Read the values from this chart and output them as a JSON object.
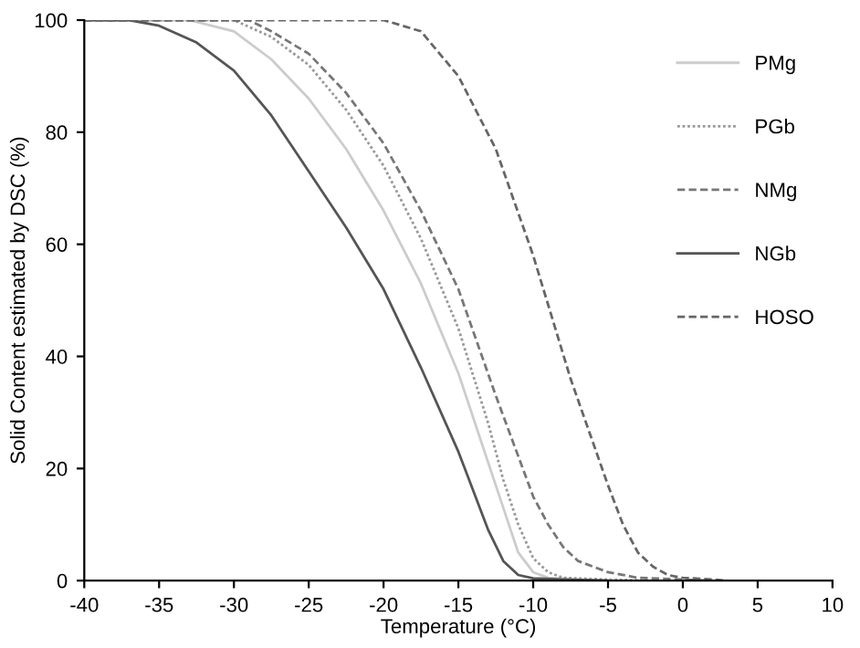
{
  "chart_data": {
    "type": "line",
    "xlabel": "Temperature (°C)",
    "ylabel": "Solid Content estimated by DSC (%)",
    "xlim": [
      -40,
      10
    ],
    "ylim": [
      0,
      100
    ],
    "xticks": [
      -40,
      -35,
      -30,
      -25,
      -20,
      -15,
      -10,
      -5,
      0,
      5,
      10
    ],
    "yticks": [
      0,
      20,
      40,
      60,
      80,
      100
    ],
    "grid": false,
    "legend": "top right",
    "marker": "none",
    "series": [
      {
        "name": "PMg",
        "color": "#cccccc",
        "line_style": "solid",
        "x": [
          -40,
          -33,
          -30,
          -27.5,
          -25,
          -22.5,
          -20,
          -17.5,
          -15,
          -13,
          -12,
          -11,
          -10,
          -9,
          -7,
          -5
        ],
        "values": [
          100,
          100,
          98,
          93,
          86,
          77,
          66,
          53,
          37,
          21,
          13,
          5,
          1.5,
          0.5,
          0.2,
          0
        ]
      },
      {
        "name": "PGb",
        "color": "#999999",
        "line_style": "dotted",
        "x": [
          -40,
          -30,
          -27.5,
          -25,
          -22.5,
          -20,
          -17.5,
          -15,
          -13,
          -12,
          -11,
          -10,
          -9,
          -8,
          -5,
          -2
        ],
        "values": [
          100,
          100,
          97,
          92,
          84,
          74,
          61,
          45,
          28,
          18,
          10,
          4,
          1.5,
          0.5,
          0.2,
          0
        ]
      },
      {
        "name": "NMg",
        "color": "#777777",
        "line_style": "dashed",
        "x": [
          -40,
          -29,
          -27.5,
          -25,
          -22.5,
          -20,
          -17.5,
          -15,
          -12.5,
          -10,
          -9,
          -8,
          -7,
          -5,
          -3,
          0,
          2
        ],
        "values": [
          100,
          100,
          98,
          94,
          87,
          78,
          66,
          52,
          33,
          15,
          10,
          6,
          3.5,
          1.5,
          0.5,
          0.2,
          0
        ]
      },
      {
        "name": "NGb",
        "color": "#555555",
        "line_style": "solid",
        "x": [
          -40,
          -37,
          -35,
          -32.5,
          -30,
          -27.5,
          -25,
          -22.5,
          -20,
          -17.5,
          -15,
          -13,
          -12,
          -11,
          -10,
          -8,
          -5
        ],
        "values": [
          100,
          100,
          99,
          96,
          91,
          83,
          73,
          63,
          52,
          38,
          23,
          9,
          3.5,
          1,
          0.4,
          0.2,
          0
        ]
      },
      {
        "name": "HOSO",
        "color": "#666666",
        "line_style": "dashed",
        "x": [
          -40,
          -20,
          -17.5,
          -15,
          -12.5,
          -10,
          -7.5,
          -5,
          -4,
          -3,
          -2,
          -1,
          0,
          2,
          3
        ],
        "values": [
          100,
          100,
          98,
          90,
          77,
          58,
          36,
          17,
          10,
          5,
          2.5,
          1,
          0.5,
          0.2,
          0
        ]
      }
    ]
  }
}
